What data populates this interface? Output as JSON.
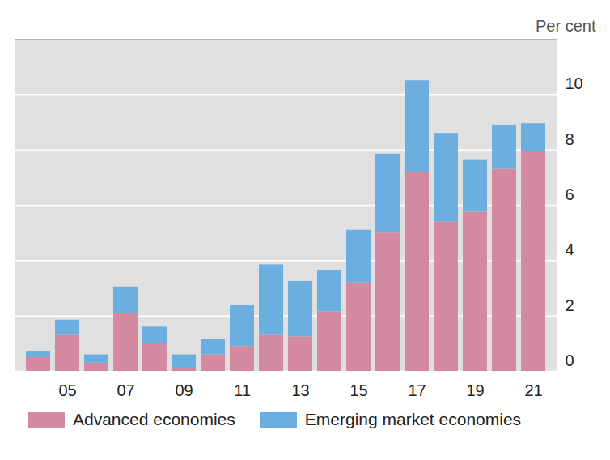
{
  "chart_data": {
    "type": "bar",
    "stacked": true,
    "y_label": "Per cent",
    "categories": [
      null,
      "05",
      null,
      "07",
      null,
      "09",
      null,
      "11",
      null,
      "13",
      null,
      "15",
      null,
      "17",
      null,
      "19",
      null,
      "21"
    ],
    "series": [
      {
        "name": "Advanced economies",
        "color": "#d38aa0",
        "values": [
          0.5,
          1.3,
          0.3,
          2.1,
          1.0,
          0.1,
          0.6,
          0.9,
          1.3,
          1.25,
          2.15,
          3.2,
          5.0,
          7.2,
          5.4,
          5.75,
          7.3,
          7.95
        ]
      },
      {
        "name": "Emerging market economies",
        "color": "#6caee0",
        "values": [
          0.2,
          0.55,
          0.3,
          0.95,
          0.6,
          0.5,
          0.55,
          1.5,
          2.55,
          2.0,
          1.5,
          1.9,
          2.85,
          3.3,
          3.2,
          1.9,
          1.6,
          1.0
        ]
      }
    ],
    "ylim": [
      0,
      12
    ],
    "yticks": [
      0,
      2,
      4,
      6,
      8,
      10
    ],
    "grid": true,
    "legend": "bottom"
  }
}
